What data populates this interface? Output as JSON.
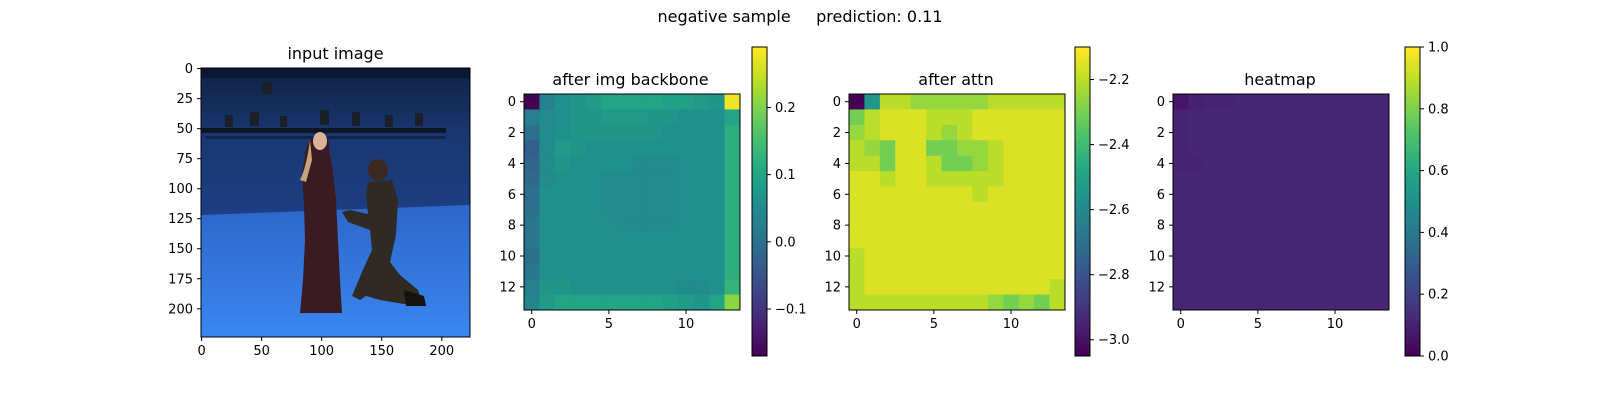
{
  "suptitle": "negative sample     prediction: 0.11",
  "chart_data": [
    {
      "type": "image",
      "title": "input image",
      "x_ticks": [
        0,
        50,
        100,
        150,
        200
      ],
      "y_ticks": [
        0,
        25,
        50,
        75,
        100,
        125,
        150,
        175,
        200
      ],
      "xlim": [
        0,
        224
      ],
      "ylim": [
        224,
        0
      ],
      "colors": {
        "background": "#1e3f86",
        "floor": "#2f78e6",
        "wall_top": "#0f2144"
      }
    },
    {
      "type": "heatmap",
      "title": "after img backbone",
      "size": 14,
      "x_ticks": [
        0,
        5,
        10
      ],
      "y_ticks": [
        0,
        2,
        4,
        6,
        8,
        10,
        12
      ],
      "colorbar": {
        "ticks": [
          -0.1,
          0.0,
          0.1,
          0.2
        ],
        "labels": [
          "−0.1",
          "0.0",
          "0.1",
          "0.2"
        ],
        "range": [
          -0.17,
          0.29
        ]
      },
      "values": [
        [
          -0.17,
          0.03,
          0.06,
          0.07,
          0.08,
          0.1,
          0.1,
          0.1,
          0.1,
          0.09,
          0.09,
          0.08,
          0.07,
          0.28
        ],
        [
          0.03,
          0.05,
          0.06,
          0.07,
          0.07,
          0.08,
          0.08,
          0.08,
          0.07,
          0.07,
          0.06,
          0.06,
          0.06,
          0.1
        ],
        [
          0.0,
          0.05,
          0.06,
          0.07,
          0.07,
          0.07,
          0.07,
          0.07,
          0.07,
          0.06,
          0.06,
          0.06,
          0.06,
          0.12
        ],
        [
          -0.03,
          0.05,
          0.08,
          0.07,
          0.06,
          0.06,
          0.06,
          0.06,
          0.06,
          0.06,
          0.06,
          0.06,
          0.06,
          0.12
        ],
        [
          -0.02,
          0.05,
          0.07,
          0.06,
          0.06,
          0.06,
          0.06,
          0.05,
          0.05,
          0.05,
          0.06,
          0.06,
          0.06,
          0.12
        ],
        [
          -0.01,
          0.05,
          0.06,
          0.06,
          0.06,
          0.05,
          0.05,
          0.05,
          0.05,
          0.05,
          0.06,
          0.06,
          0.06,
          0.12
        ],
        [
          0.0,
          0.06,
          0.06,
          0.06,
          0.06,
          0.05,
          0.05,
          0.05,
          0.05,
          0.05,
          0.06,
          0.06,
          0.06,
          0.12
        ],
        [
          0.0,
          0.06,
          0.06,
          0.06,
          0.06,
          0.05,
          0.05,
          0.05,
          0.05,
          0.05,
          0.06,
          0.06,
          0.06,
          0.12
        ],
        [
          0.01,
          0.06,
          0.06,
          0.06,
          0.06,
          0.06,
          0.05,
          0.05,
          0.05,
          0.05,
          0.06,
          0.06,
          0.06,
          0.12
        ],
        [
          0.01,
          0.06,
          0.06,
          0.06,
          0.06,
          0.06,
          0.06,
          0.06,
          0.06,
          0.06,
          0.06,
          0.06,
          0.06,
          0.12
        ],
        [
          0.0,
          0.06,
          0.06,
          0.06,
          0.06,
          0.06,
          0.06,
          0.06,
          0.06,
          0.06,
          0.06,
          0.06,
          0.06,
          0.12
        ],
        [
          0.01,
          0.06,
          0.06,
          0.06,
          0.06,
          0.06,
          0.06,
          0.06,
          0.06,
          0.06,
          0.06,
          0.06,
          0.06,
          0.12
        ],
        [
          0.03,
          0.07,
          0.07,
          0.06,
          0.06,
          0.06,
          0.06,
          0.06,
          0.06,
          0.06,
          0.05,
          0.05,
          0.06,
          0.13
        ],
        [
          0.04,
          0.08,
          0.1,
          0.1,
          0.1,
          0.1,
          0.1,
          0.1,
          0.1,
          0.09,
          0.08,
          0.07,
          0.1,
          0.21
        ]
      ]
    },
    {
      "type": "heatmap",
      "title": "after attn",
      "size": 14,
      "x_ticks": [
        0,
        5,
        10
      ],
      "y_ticks": [
        0,
        2,
        4,
        6,
        8,
        10,
        12
      ],
      "colorbar": {
        "ticks": [
          -3.0,
          -2.8,
          -2.6,
          -2.4,
          -2.2
        ],
        "labels": [
          "−3.0",
          "−2.8",
          "−2.6",
          "−2.4",
          "−2.2"
        ],
        "range": [
          -3.05,
          -2.1
        ]
      },
      "values": [
        [
          -3.05,
          -2.55,
          -2.2,
          -2.2,
          -2.25,
          -2.25,
          -2.25,
          -2.25,
          -2.25,
          -2.2,
          -2.2,
          -2.2,
          -2.2,
          -2.2
        ],
        [
          -2.3,
          -2.2,
          -2.15,
          -2.15,
          -2.15,
          -2.2,
          -2.2,
          -2.2,
          -2.15,
          -2.15,
          -2.15,
          -2.15,
          -2.15,
          -2.15
        ],
        [
          -2.25,
          -2.2,
          -2.15,
          -2.15,
          -2.15,
          -2.2,
          -2.25,
          -2.2,
          -2.15,
          -2.15,
          -2.15,
          -2.15,
          -2.15,
          -2.15
        ],
        [
          -2.2,
          -2.25,
          -2.3,
          -2.15,
          -2.15,
          -2.3,
          -2.3,
          -2.25,
          -2.25,
          -2.2,
          -2.15,
          -2.15,
          -2.15,
          -2.15
        ],
        [
          -2.2,
          -2.2,
          -2.3,
          -2.15,
          -2.15,
          -2.2,
          -2.3,
          -2.3,
          -2.25,
          -2.2,
          -2.15,
          -2.15,
          -2.15,
          -2.15
        ],
        [
          -2.15,
          -2.15,
          -2.2,
          -2.15,
          -2.15,
          -2.2,
          -2.2,
          -2.2,
          -2.2,
          -2.2,
          -2.15,
          -2.15,
          -2.15,
          -2.15
        ],
        [
          -2.15,
          -2.15,
          -2.15,
          -2.15,
          -2.15,
          -2.15,
          -2.15,
          -2.15,
          -2.2,
          -2.15,
          -2.15,
          -2.15,
          -2.15,
          -2.15
        ],
        [
          -2.15,
          -2.15,
          -2.15,
          -2.15,
          -2.15,
          -2.15,
          -2.15,
          -2.15,
          -2.15,
          -2.15,
          -2.15,
          -2.15,
          -2.15,
          -2.15
        ],
        [
          -2.15,
          -2.15,
          -2.15,
          -2.15,
          -2.15,
          -2.15,
          -2.15,
          -2.15,
          -2.15,
          -2.15,
          -2.15,
          -2.15,
          -2.15,
          -2.15
        ],
        [
          -2.15,
          -2.15,
          -2.15,
          -2.15,
          -2.15,
          -2.15,
          -2.15,
          -2.15,
          -2.15,
          -2.15,
          -2.15,
          -2.15,
          -2.15,
          -2.15
        ],
        [
          -2.2,
          -2.15,
          -2.15,
          -2.15,
          -2.15,
          -2.15,
          -2.15,
          -2.15,
          -2.15,
          -2.15,
          -2.15,
          -2.15,
          -2.15,
          -2.15
        ],
        [
          -2.2,
          -2.15,
          -2.15,
          -2.15,
          -2.15,
          -2.15,
          -2.15,
          -2.15,
          -2.15,
          -2.15,
          -2.15,
          -2.15,
          -2.15,
          -2.15
        ],
        [
          -2.2,
          -2.15,
          -2.15,
          -2.15,
          -2.15,
          -2.15,
          -2.15,
          -2.15,
          -2.15,
          -2.15,
          -2.15,
          -2.15,
          -2.15,
          -2.2
        ],
        [
          -2.2,
          -2.2,
          -2.2,
          -2.2,
          -2.2,
          -2.2,
          -2.2,
          -2.2,
          -2.2,
          -2.25,
          -2.3,
          -2.25,
          -2.3,
          -2.2
        ]
      ]
    },
    {
      "type": "heatmap",
      "title": "heatmap",
      "size": 14,
      "x_ticks": [
        0,
        5,
        10
      ],
      "y_ticks": [
        0,
        2,
        4,
        6,
        8,
        10,
        12
      ],
      "colorbar": {
        "ticks": [
          0.0,
          0.2,
          0.4,
          0.6,
          0.8,
          1.0
        ],
        "labels": [
          "0.0",
          "0.2",
          "0.4",
          "0.6",
          "0.8",
          "1.0"
        ],
        "range": [
          0,
          1
        ]
      },
      "values": [
        [
          0.06,
          0.09,
          0.1,
          0.1,
          0.11,
          0.11,
          0.11,
          0.11,
          0.11,
          0.11,
          0.11,
          0.11,
          0.11,
          0.11
        ],
        [
          0.1,
          0.11,
          0.11,
          0.11,
          0.11,
          0.11,
          0.11,
          0.11,
          0.11,
          0.11,
          0.11,
          0.11,
          0.11,
          0.11
        ],
        [
          0.1,
          0.11,
          0.11,
          0.11,
          0.11,
          0.11,
          0.11,
          0.11,
          0.11,
          0.11,
          0.11,
          0.11,
          0.11,
          0.11
        ],
        [
          0.1,
          0.11,
          0.11,
          0.11,
          0.11,
          0.11,
          0.11,
          0.11,
          0.11,
          0.11,
          0.11,
          0.11,
          0.11,
          0.11
        ],
        [
          0.1,
          0.1,
          0.11,
          0.11,
          0.11,
          0.11,
          0.11,
          0.11,
          0.11,
          0.11,
          0.11,
          0.11,
          0.11,
          0.11
        ],
        [
          0.11,
          0.11,
          0.11,
          0.11,
          0.11,
          0.11,
          0.11,
          0.11,
          0.11,
          0.11,
          0.11,
          0.11,
          0.11,
          0.11
        ],
        [
          0.11,
          0.11,
          0.11,
          0.11,
          0.11,
          0.11,
          0.11,
          0.11,
          0.11,
          0.11,
          0.11,
          0.11,
          0.11,
          0.11
        ],
        [
          0.11,
          0.11,
          0.11,
          0.11,
          0.11,
          0.11,
          0.11,
          0.11,
          0.11,
          0.11,
          0.11,
          0.11,
          0.11,
          0.11
        ],
        [
          0.11,
          0.11,
          0.11,
          0.11,
          0.11,
          0.11,
          0.11,
          0.11,
          0.11,
          0.11,
          0.11,
          0.11,
          0.11,
          0.11
        ],
        [
          0.11,
          0.11,
          0.11,
          0.11,
          0.11,
          0.11,
          0.11,
          0.11,
          0.11,
          0.11,
          0.11,
          0.11,
          0.11,
          0.11
        ],
        [
          0.11,
          0.11,
          0.11,
          0.11,
          0.11,
          0.11,
          0.11,
          0.11,
          0.11,
          0.11,
          0.11,
          0.11,
          0.11,
          0.11
        ],
        [
          0.11,
          0.11,
          0.11,
          0.11,
          0.11,
          0.11,
          0.11,
          0.11,
          0.11,
          0.11,
          0.11,
          0.11,
          0.11,
          0.11
        ],
        [
          0.11,
          0.11,
          0.11,
          0.11,
          0.11,
          0.11,
          0.11,
          0.11,
          0.11,
          0.11,
          0.11,
          0.11,
          0.11,
          0.11
        ],
        [
          0.11,
          0.11,
          0.11,
          0.11,
          0.11,
          0.11,
          0.11,
          0.11,
          0.11,
          0.11,
          0.11,
          0.11,
          0.11,
          0.11
        ]
      ]
    }
  ]
}
